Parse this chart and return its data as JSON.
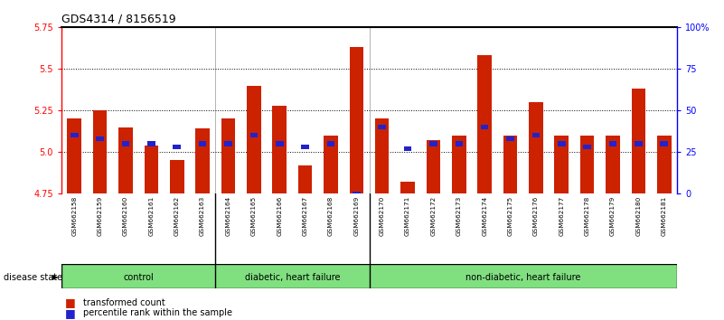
{
  "title": "GDS4314 / 8156519",
  "samples": [
    "GSM662158",
    "GSM662159",
    "GSM662160",
    "GSM662161",
    "GSM662162",
    "GSM662163",
    "GSM662164",
    "GSM662165",
    "GSM662166",
    "GSM662167",
    "GSM662168",
    "GSM662169",
    "GSM662170",
    "GSM662171",
    "GSM662172",
    "GSM662173",
    "GSM662174",
    "GSM662175",
    "GSM662176",
    "GSM662177",
    "GSM662178",
    "GSM662179",
    "GSM662180",
    "GSM662181"
  ],
  "red_values": [
    5.2,
    5.25,
    5.15,
    5.04,
    4.95,
    5.14,
    5.2,
    5.4,
    5.28,
    4.92,
    5.1,
    5.63,
    5.2,
    4.82,
    5.07,
    5.1,
    5.58,
    5.1,
    5.3,
    5.1,
    5.1,
    5.1,
    5.38,
    5.1
  ],
  "blue_pct": [
    35,
    33,
    30,
    30,
    28,
    30,
    30,
    35,
    30,
    28,
    30,
    0,
    40,
    27,
    30,
    30,
    40,
    33,
    35,
    30,
    28,
    30,
    30,
    30
  ],
  "ylim": [
    4.75,
    5.75
  ],
  "yticks_left": [
    4.75,
    5.0,
    5.25,
    5.5,
    5.75
  ],
  "yticks_right_pct": [
    0,
    25,
    50,
    75,
    100
  ],
  "yticks_right_labels": [
    "0",
    "25",
    "50",
    "75",
    "100%"
  ],
  "bar_color": "#cc2200",
  "dot_color": "#2222cc",
  "group_defs": [
    [
      0,
      5,
      "control"
    ],
    [
      6,
      11,
      "diabetic, heart failure"
    ],
    [
      12,
      23,
      "non-diabetic, heart failure"
    ]
  ],
  "group_boundaries": [
    6,
    12
  ],
  "group_color": "#80e080",
  "disease_state_label": "disease state",
  "legend_red": "transformed count",
  "legend_blue": "percentile rank within the sample"
}
